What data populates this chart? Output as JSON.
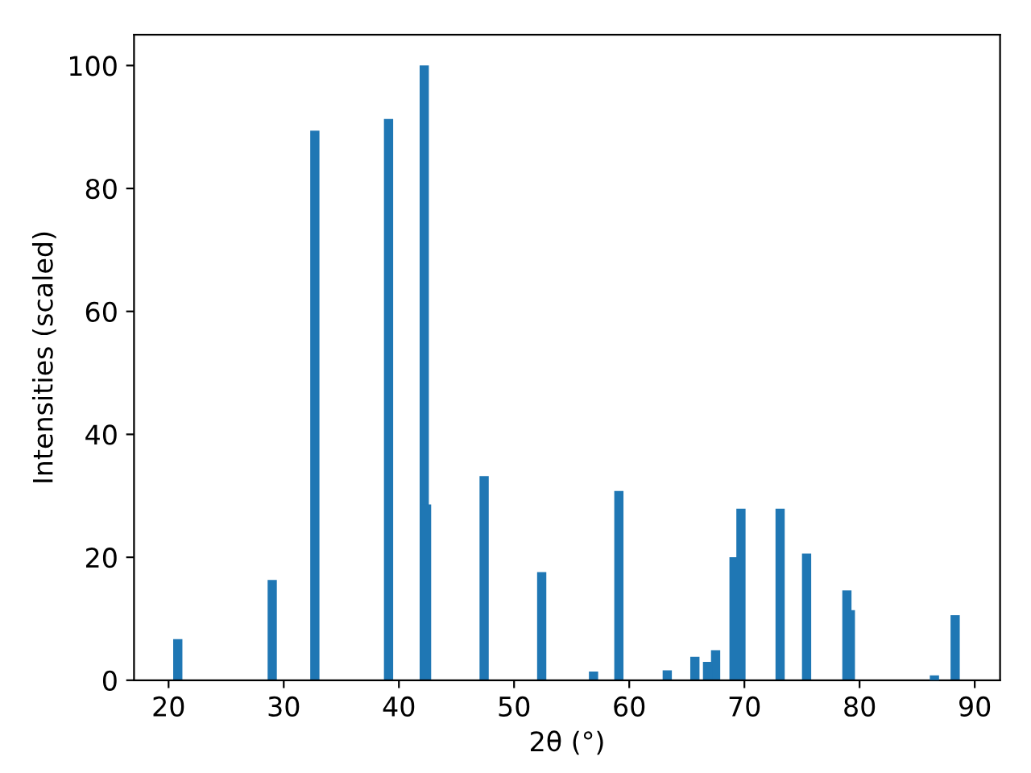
{
  "chart_data": {
    "type": "bar",
    "xlabel": "2θ (°)",
    "ylabel": "Intensities (scaled)",
    "x": [
      20.8,
      29.0,
      32.7,
      39.1,
      42.2,
      42.4,
      47.4,
      52.4,
      56.9,
      59.1,
      63.3,
      65.7,
      66.8,
      67.5,
      69.1,
      69.7,
      73.1,
      75.4,
      78.9,
      79.2,
      86.5,
      88.3
    ],
    "values": [
      6.7,
      16.3,
      89.4,
      91.3,
      100,
      28.6,
      33.2,
      17.6,
      1.4,
      30.8,
      1.6,
      3.8,
      3.0,
      4.9,
      20.0,
      27.9,
      27.9,
      20.6,
      14.6,
      11.4,
      0.8,
      10.6
    ],
    "color": "#1f77b4",
    "xlim": [
      17.0,
      92.2
    ],
    "xticks": [
      20,
      30,
      40,
      50,
      60,
      70,
      80,
      90
    ],
    "ylim": [
      0,
      105
    ],
    "yticks": [
      0,
      20,
      40,
      60,
      80,
      100
    ],
    "grid": false
  }
}
